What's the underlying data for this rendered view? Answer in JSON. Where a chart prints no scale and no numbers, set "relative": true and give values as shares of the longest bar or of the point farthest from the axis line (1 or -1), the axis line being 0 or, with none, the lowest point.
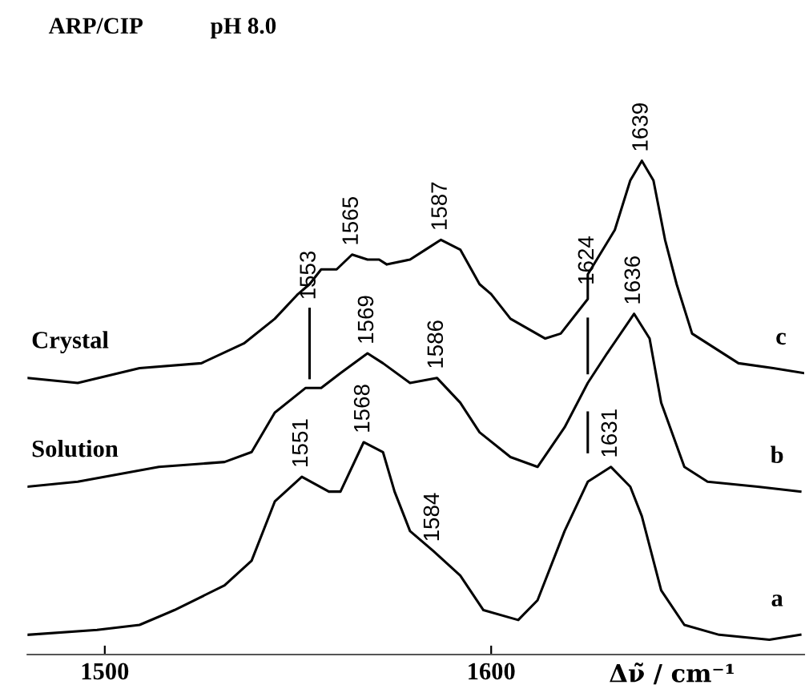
{
  "chart_data": {
    "type": "line",
    "relative": true,
    "title": "ARP/CIP",
    "subtitle": "pH 8.0",
    "xlabel": "Δν̃ / cm⁻¹",
    "xlim": [
      1480,
      1681
    ],
    "xticks": [
      1500,
      1600
    ],
    "grid": false,
    "legend": false,
    "marker": "none",
    "line_style": "solid",
    "series": [
      {
        "name": "Crystal",
        "color": "#000000",
        "x": [
          1480,
          1493,
          1509,
          1525,
          1536,
          1544,
          1550,
          1553,
          1556,
          1560,
          1564,
          1568,
          1571,
          1573,
          1579,
          1583,
          1587,
          1592,
          1597,
          1600,
          1605,
          1614,
          1618,
          1625,
          1625,
          1632,
          1636,
          1639,
          1642,
          1645,
          1648,
          1652,
          1664,
          1673,
          1681
        ],
        "values": [
          0.56,
          0.55,
          0.58,
          0.59,
          0.63,
          0.68,
          0.73,
          0.75,
          0.78,
          0.78,
          0.81,
          0.8,
          0.8,
          0.79,
          0.8,
          0.82,
          0.84,
          0.82,
          0.75,
          0.73,
          0.68,
          0.64,
          0.65,
          0.72,
          0.77,
          0.86,
          0.96,
          1.0,
          0.96,
          0.84,
          0.75,
          0.65,
          0.59,
          0.58,
          0.57
        ]
      },
      {
        "name": "Solution",
        "color": "#000000",
        "x": [
          1480,
          1493,
          1514,
          1531,
          1538,
          1544,
          1552,
          1556,
          1561,
          1568,
          1572,
          1579,
          1586,
          1592,
          1597,
          1605,
          1612,
          1619,
          1625,
          1630,
          1637,
          1641,
          1644,
          1650,
          1656,
          1669,
          1680
        ],
        "values": [
          0.34,
          0.35,
          0.38,
          0.39,
          0.41,
          0.49,
          0.54,
          0.54,
          0.57,
          0.61,
          0.59,
          0.55,
          0.56,
          0.51,
          0.45,
          0.4,
          0.38,
          0.46,
          0.55,
          0.61,
          0.69,
          0.64,
          0.51,
          0.38,
          0.35,
          0.34,
          0.33
        ]
      },
      {
        "color": "#000000",
        "x": [
          1480,
          1498,
          1509,
          1518,
          1531,
          1538,
          1544,
          1551,
          1558,
          1561,
          1567,
          1572,
          1575,
          1579,
          1585,
          1592,
          1598,
          1607,
          1612,
          1619,
          1625,
          1631,
          1636,
          1639,
          1644,
          1650,
          1659,
          1672,
          1680
        ],
        "values": [
          0.04,
          0.05,
          0.06,
          0.09,
          0.14,
          0.19,
          0.31,
          0.36,
          0.33,
          0.33,
          0.43,
          0.41,
          0.33,
          0.25,
          0.21,
          0.16,
          0.09,
          0.07,
          0.11,
          0.25,
          0.35,
          0.38,
          0.34,
          0.28,
          0.13,
          0.06,
          0.04,
          0.03,
          0.04
        ]
      },
      {
        "color": "#000000",
        "x": [
          1553,
          1553
        ],
        "values": [
          0.7,
          0.56
        ]
      },
      {
        "color": "#000000",
        "x": [
          1625,
          1625
        ],
        "values": [
          0.68,
          0.57
        ]
      },
      {
        "color": "#000000",
        "x": [
          1625,
          1625
        ],
        "values": [
          0.49,
          0.41
        ]
      }
    ],
    "annotations": [
      {
        "text": "1553",
        "x": 1553,
        "y": 0.7
      },
      {
        "text": "1565",
        "x": 1564,
        "y": 0.81
      },
      {
        "text": "1587",
        "x": 1587,
        "y": 0.84
      },
      {
        "text": "1624",
        "x": 1625,
        "y": 0.73
      },
      {
        "text": "1639",
        "x": 1639,
        "y": 1.0
      },
      {
        "text": "1569",
        "x": 1568,
        "y": 0.61
      },
      {
        "text": "1586",
        "x": 1586,
        "y": 0.56
      },
      {
        "text": "1636",
        "x": 1637,
        "y": 0.69
      },
      {
        "text": "1551",
        "x": 1551,
        "y": 0.36
      },
      {
        "text": "1568",
        "x": 1567,
        "y": 0.43
      },
      {
        "text": "1584",
        "x": 1585,
        "y": 0.21
      },
      {
        "text": "1631",
        "x": 1631,
        "y": 0.38
      },
      "c",
      "b",
      "a"
    ]
  }
}
